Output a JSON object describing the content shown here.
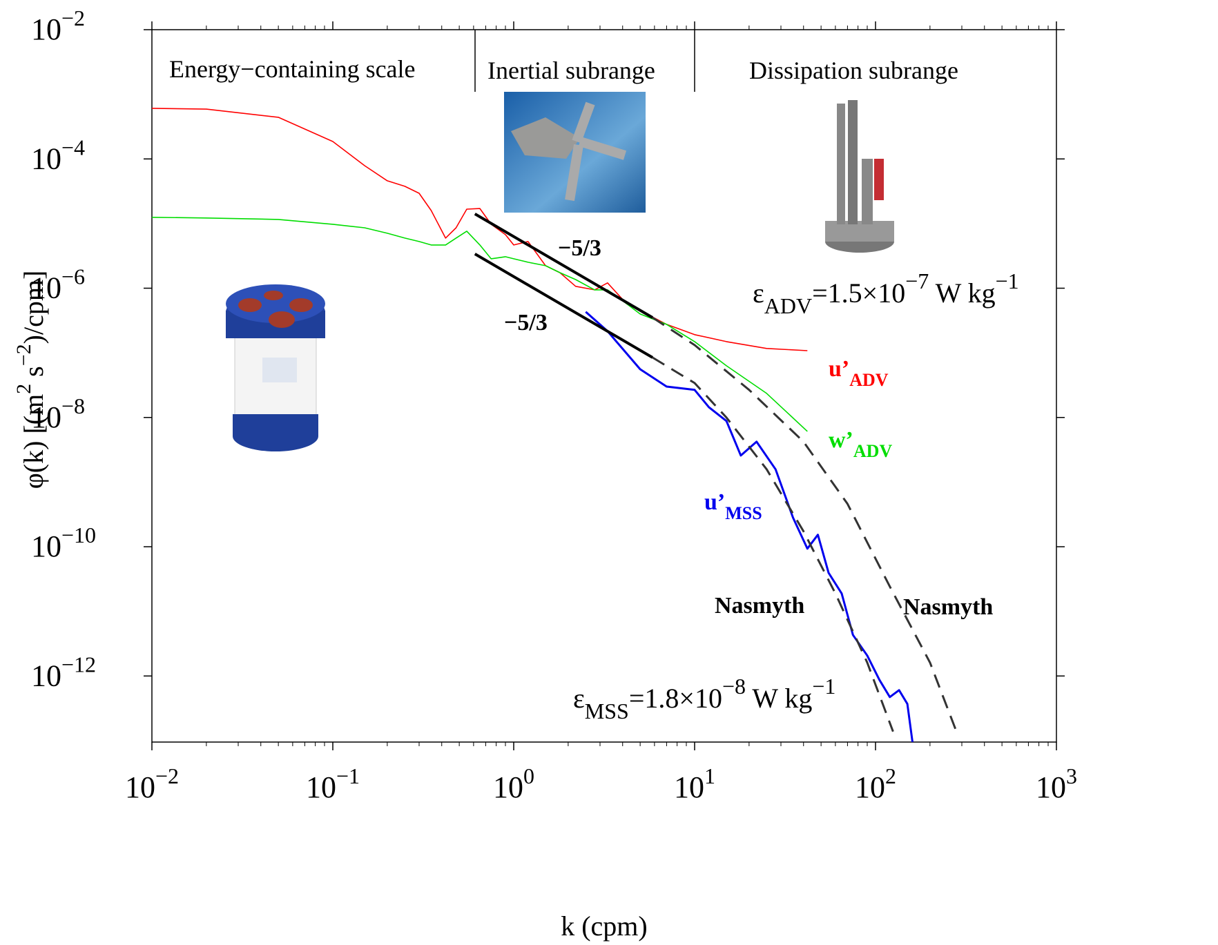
{
  "chart_data": {
    "type": "line",
    "xlabel": "k (cpm)",
    "ylabel": [
      "φ(k) [(m",
      "2",
      " s",
      "−2",
      ")/cpm]"
    ],
    "log_x": true,
    "log_y": true,
    "xlim": [
      0.01,
      1000
    ],
    "ylim": [
      9.5e-14,
      0.01
    ],
    "xticks": [
      {
        "value": 0.01,
        "label": "10−2"
      },
      {
        "value": 0.1,
        "label": "10−1"
      },
      {
        "value": 1,
        "label": "100"
      },
      {
        "value": 10,
        "label": "101"
      },
      {
        "value": 100,
        "label": "102"
      },
      {
        "value": 1000,
        "label": "103"
      }
    ],
    "xminorticks": [
      0.02,
      0.03,
      0.04,
      0.05,
      0.06,
      0.07,
      0.08,
      0.09,
      0.2,
      0.3,
      0.4,
      0.5,
      0.6,
      0.7,
      0.8,
      0.9,
      2,
      3,
      4,
      5,
      6,
      7,
      8,
      9,
      20,
      30,
      40,
      50,
      60,
      70,
      80,
      90,
      200,
      300,
      400,
      500,
      600,
      700,
      800,
      900
    ],
    "yticks": [
      {
        "value": 1e-12,
        "label": "10−12"
      },
      {
        "value": 1e-10,
        "label": "10−10"
      },
      {
        "value": 1e-08,
        "label": "10−8"
      },
      {
        "value": 1e-06,
        "label": "10−6"
      },
      {
        "value": 0.0001,
        "label": "10−4"
      },
      {
        "value": 0.01,
        "label": "10−2"
      }
    ],
    "regions": [
      "Energy−containing scale",
      "Inertial subrange",
      "Dissipation subrange"
    ],
    "annotations": {
      "epsilon_adv": [
        "ε",
        "ADV",
        "=1.5×10",
        "−7",
        " W kg",
        "−1"
      ],
      "epsilon_mss": [
        "ε",
        "MSS",
        "=1.8×10",
        "−8",
        " W kg",
        "−1"
      ]
    },
    "series": [
      {
        "name": "u’ADV",
        "color": "#ff0000",
        "width": 1.6,
        "dashed": false,
        "x": [
          0.01,
          0.02,
          0.05,
          0.1,
          0.15,
          0.2,
          0.25,
          0.3,
          0.35,
          0.42,
          0.48,
          0.55,
          0.65,
          0.75,
          0.9,
          1.0,
          1.2,
          1.5,
          1.8,
          2.2,
          2.8,
          3.3,
          4.2,
          5,
          7,
          10,
          15,
          25,
          42
        ],
        "values": [
          0.000607,
          0.00059,
          0.000441,
          0.000186,
          7.87e-05,
          4.59e-05,
          3.77e-05,
          2.94e-05,
          1.59e-05,
          5.96e-06,
          8.61e-06,
          1.67e-05,
          1.71e-05,
          9.75e-06,
          6.75e-06,
          4.66e-06,
          5.27e-06,
          2.23e-06,
          1.74e-06,
          1.07e-06,
          9.42e-07,
          1.21e-06,
          5.77e-07,
          4.51e-07,
          2.76e-07,
          1.91e-07,
          1.49e-07,
          1.17e-07,
          1.08e-07
        ]
      },
      {
        "name": "w’ADV",
        "color": "#00dd00",
        "width": 1.6,
        "dashed": false,
        "x": [
          0.01,
          0.02,
          0.05,
          0.1,
          0.15,
          0.2,
          0.25,
          0.3,
          0.35,
          0.42,
          0.48,
          0.55,
          0.65,
          0.75,
          0.9,
          1.0,
          1.2,
          1.5,
          1.8,
          2.2,
          2.8,
          3.3,
          4.2,
          5,
          7,
          10,
          15,
          25,
          42
        ],
        "values": [
          1.25e-05,
          1.22e-05,
          1.16e-05,
          9.75e-06,
          8.61e-06,
          7.08e-06,
          5.96e-06,
          5.27e-06,
          4.66e-06,
          4.66e-06,
          5.96e-06,
          7.62e-06,
          4.66e-06,
          2.85e-06,
          3.07e-06,
          2.85e-06,
          2.52e-06,
          2.23e-06,
          1.74e-06,
          1.36e-06,
          9.42e-07,
          9.42e-07,
          5.77e-07,
          3.99e-07,
          2.76e-07,
          1.49e-07,
          6.31e-08,
          2.36e-08,
          6.1e-09
        ]
      },
      {
        "name": "u’MSS",
        "color": "#0000ee",
        "width": 3,
        "dashed": false,
        "x": [
          2.5,
          3.3,
          5,
          7,
          10,
          12,
          15,
          18,
          22,
          28,
          35,
          42,
          48,
          55,
          65,
          75,
          90,
          105,
          120,
          135,
          150,
          160
        ],
        "values": [
          4.3e-07,
          2.16e-07,
          5.57e-08,
          3.01e-08,
          2.67e-08,
          1.44e-08,
          8.81e-09,
          2.58e-09,
          4.22e-09,
          1.58e-09,
          2.82e-10,
          9.33e-11,
          1.53e-10,
          3.95e-11,
          1.89e-11,
          4.32e-12,
          2.07e-12,
          8.73e-13,
          4.72e-13,
          6.04e-13,
          3.7e-13,
          9.55e-14
        ]
      },
      {
        "name": "−5/3",
        "color": "#000000",
        "width": 4,
        "dashed": false,
        "x": [
          0.61,
          5.85
        ],
        "values": [
          1.41e-05,
          3.52e-07
        ]
      },
      {
        "name": "−5/3",
        "color": "#000000",
        "width": 4,
        "dashed": false,
        "x": [
          0.61,
          5.85
        ],
        "values": [
          3.39e-06,
          8.47e-08
        ]
      },
      {
        "name": "Nasmyth",
        "color": "#333333",
        "width": 3,
        "dashed": true,
        "x": [
          5.85,
          10,
          15,
          25,
          40,
          60,
          90,
          125
        ],
        "values": [
          8.47e-08,
          3.41e-08,
          9.98e-09,
          1.58e-09,
          1.73e-10,
          1.89e-11,
          1.61e-12,
          1.38e-13
        ]
      },
      {
        "name": "Nasmyth",
        "color": "#333333",
        "width": 3,
        "dashed": true,
        "x": [
          5.85,
          10,
          20,
          40,
          70,
          120,
          200,
          280
        ],
        "values": [
          3.52e-07,
          1.32e-07,
          2.67e-08,
          4.22e-09,
          4.61e-10,
          2.42e-11,
          1.61e-12,
          1.38e-13
        ]
      }
    ]
  }
}
